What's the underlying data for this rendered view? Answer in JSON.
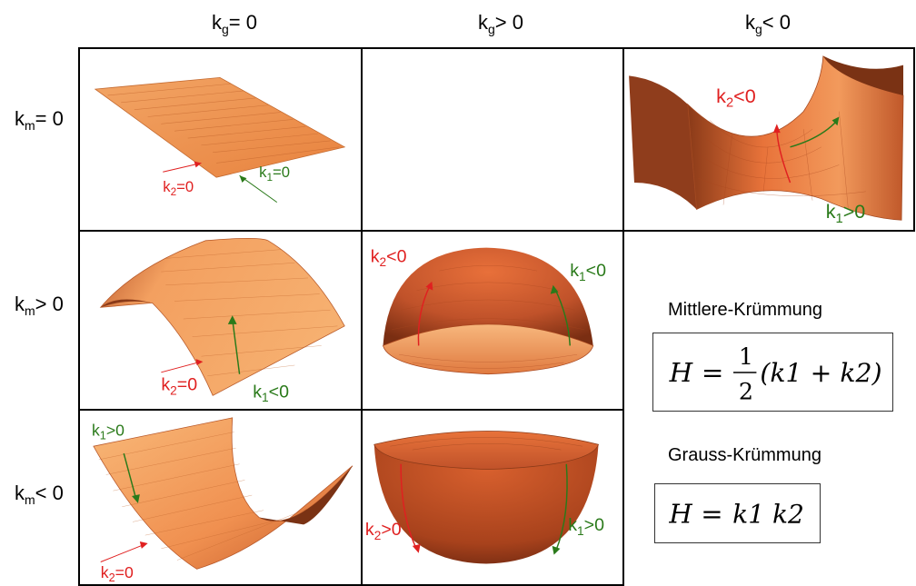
{
  "columns": [
    {
      "main": "k",
      "sub": "g",
      "rest": "= 0"
    },
    {
      "main": "k",
      "sub": "g",
      "rest": "> 0"
    },
    {
      "main": "k",
      "sub": "g",
      "rest": "< 0"
    }
  ],
  "rows": [
    {
      "main": "k",
      "sub": "m",
      "rest": "= 0"
    },
    {
      "main": "k",
      "sub": "m",
      "rest": "> 0"
    },
    {
      "main": "k",
      "sub": "m",
      "rest": "< 0"
    }
  ],
  "cells": {
    "plane": {
      "k2": {
        "main": "k",
        "sub": "2",
        "rest": "=0"
      },
      "k1": {
        "main": "k",
        "sub": "1",
        "rest": "=0"
      }
    },
    "saddle": {
      "k2": {
        "main": "k",
        "sub": "2",
        "rest": "<0"
      },
      "k1": {
        "main": "k",
        "sub": "1",
        "rest": ">0"
      }
    },
    "cylinder_up": {
      "k2": {
        "main": "k",
        "sub": "2",
        "rest": "=0"
      },
      "k1": {
        "main": "k",
        "sub": "1",
        "rest": "<0"
      }
    },
    "dome": {
      "k2": {
        "main": "k",
        "sub": "2",
        "rest": "<0"
      },
      "k1": {
        "main": "k",
        "sub": "1",
        "rest": "<0"
      }
    },
    "cylinder_down": {
      "k1": {
        "main": "k",
        "sub": "1",
        "rest": ">0"
      },
      "k2": {
        "main": "k",
        "sub": "2",
        "rest": "=0"
      }
    },
    "bowl": {
      "k2": {
        "main": "k",
        "sub": "2",
        "rest": ">0"
      },
      "k1": {
        "main": "k",
        "sub": "1",
        "rest": ">0"
      }
    }
  },
  "mean_curvature": {
    "title": "Mittlere-Krümmung",
    "H": "H",
    "eq": "=",
    "num": "1",
    "den": "2",
    "rhs": "(k1 + k2)"
  },
  "gauss_curvature": {
    "title": "Grauss-Krümmung",
    "H": "H",
    "eq": "=",
    "rhs": "k1 k2"
  },
  "colors": {
    "surface_light": "#f4a060",
    "surface_dark": "#b8481c",
    "red_label": "#e02020",
    "green_label": "#2a7a1a"
  }
}
